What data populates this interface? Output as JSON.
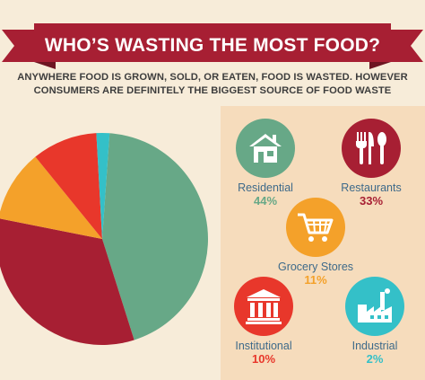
{
  "header": {
    "title": "WHO’S WASTING THE MOST FOOD?",
    "subtitle_line1": "ANYWHERE FOOD IS GROWN, SOLD, OR EATEN, FOOD IS WASTED. HOWEVER",
    "subtitle_line2": "CONSUMERS ARE DEFINITELY THE BIGGEST SOURCE OF FOOD WASTE"
  },
  "colors": {
    "background": "#f7ecd9",
    "banner": "#a71f33",
    "banner_dark": "#6e1522",
    "panel": "#f6dcbc",
    "residential": "#67a887",
    "restaurants": "#a71f33",
    "grocery": "#f4a12a",
    "institutional": "#e8372b",
    "industrial": "#34c0c8"
  },
  "chart_data": {
    "type": "pie",
    "title": "",
    "categories": [
      "Residential",
      "Restaurants",
      "Grocery Stores",
      "Institutional",
      "Industrial"
    ],
    "values": [
      44,
      33,
      11,
      10,
      2
    ],
    "colors": [
      "#67a887",
      "#a71f33",
      "#f4a12a",
      "#e8372b",
      "#34c0c8"
    ]
  },
  "legend": {
    "residential": {
      "label": "Residential",
      "pct": "44%",
      "icon": "house-icon"
    },
    "restaurants": {
      "label": "Restaurants",
      "pct": "33%",
      "icon": "fork-knife-spoon-icon"
    },
    "grocery": {
      "label": "Grocery Stores",
      "pct": "11%",
      "icon": "shopping-cart-icon"
    },
    "institutional": {
      "label": "Institutional",
      "pct": "10%",
      "icon": "government-building-icon"
    },
    "industrial": {
      "label": "Industrial",
      "pct": "2%",
      "icon": "factory-icon"
    }
  }
}
